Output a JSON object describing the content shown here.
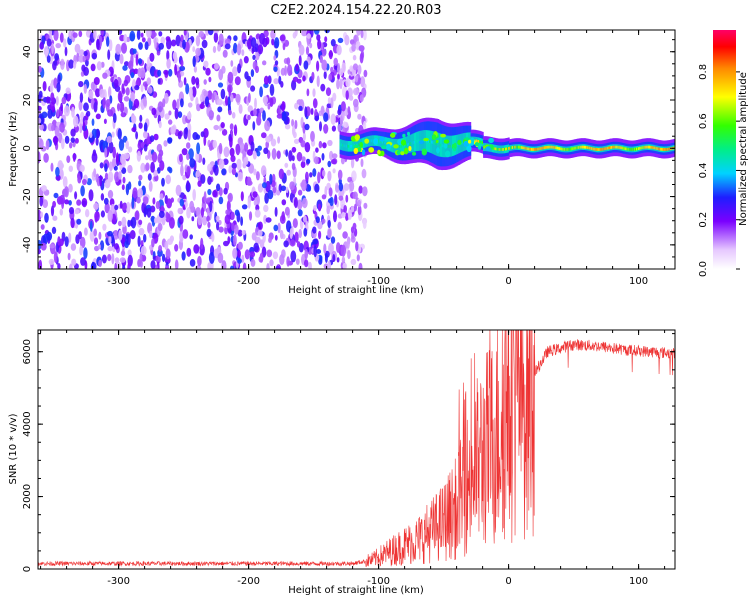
{
  "title": "C2E2.2024.154.22.20.R03",
  "chart_data": [
    {
      "type": "heatmap",
      "xlabel": "Height of straight line (km)",
      "ylabel": "Frequency (Hz)",
      "xlim": [
        -362,
        128
      ],
      "ylim": [
        -50,
        49
      ],
      "xticks": [
        -300,
        -200,
        -100,
        0,
        100
      ],
      "yticks": [
        -40,
        -20,
        0,
        20,
        40
      ],
      "colorbar": {
        "label": "Normalized spectral amplitude",
        "range": [
          0,
          0.97
        ],
        "ticks": [
          0.0,
          0.2,
          0.4,
          0.6,
          0.8
        ]
      },
      "regions": [
        {
          "name": "noise",
          "x": [
            -362,
            -118
          ],
          "freq": [
            -50,
            49
          ],
          "amplitude": [
            0.05,
            0.4
          ]
        },
        {
          "name": "signal",
          "x": [
            -130,
            128
          ],
          "freq_center": 0,
          "freq_spread_max": 10,
          "amplitude": [
            0.3,
            0.9
          ]
        }
      ],
      "grid": false
    },
    {
      "type": "line",
      "xlabel": "Height of straight line (km)",
      "ylabel": "SNR (10 * v/v)",
      "xlim": [
        -362,
        128
      ],
      "ylim": [
        0,
        6600
      ],
      "xticks": [
        -300,
        -200,
        -100,
        0,
        100
      ],
      "yticks": [
        0,
        2000,
        4000,
        6000
      ],
      "color": "#ee3333",
      "series": [
        {
          "x": [
            -362,
            -300,
            -200,
            -120,
            -105,
            -90,
            -70,
            -50,
            -40,
            -30,
            -20,
            -10,
            -5,
            0,
            10,
            20,
            30,
            50,
            70,
            90,
            110,
            128
          ],
          "values": [
            150,
            150,
            150,
            150,
            250,
            500,
            800,
            1300,
            1700,
            2500,
            3200,
            3600,
            4300,
            4400,
            4900,
            5400,
            6000,
            6200,
            6150,
            6050,
            6000,
            5950
          ]
        }
      ],
      "grid": false
    }
  ]
}
